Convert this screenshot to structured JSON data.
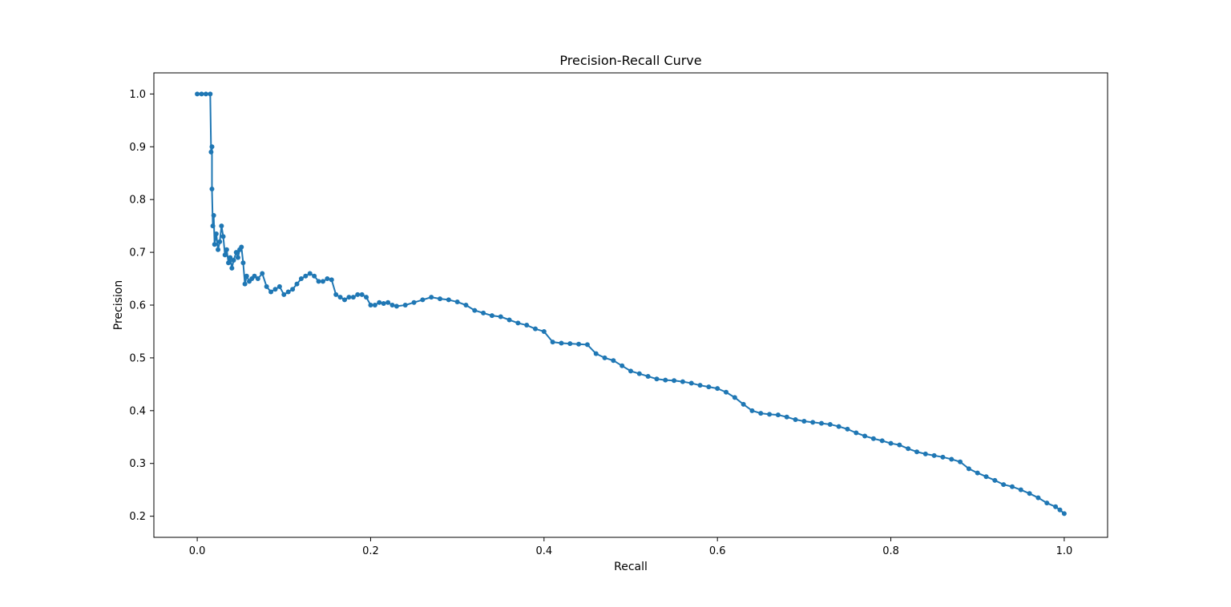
{
  "chart_data": {
    "type": "line",
    "title": "Precision-Recall Curve",
    "xlabel": "Recall",
    "ylabel": "Precision",
    "xlim": [
      -0.05,
      1.05
    ],
    "ylim": [
      0.16,
      1.04
    ],
    "x_ticks": [
      0.0,
      0.2,
      0.4,
      0.6,
      0.8,
      1.0
    ],
    "y_ticks": [
      0.2,
      0.3,
      0.4,
      0.5,
      0.6,
      0.7,
      0.8,
      0.9,
      1.0
    ],
    "x_tick_labels": [
      "0.0",
      "0.2",
      "0.4",
      "0.6",
      "0.8",
      "1.0"
    ],
    "y_tick_labels": [
      "0.2",
      "0.3",
      "0.4",
      "0.5",
      "0.6",
      "0.7",
      "0.8",
      "0.9",
      "1.0"
    ],
    "grid": false,
    "marker": "o",
    "colors": {
      "series": "#1f77b4"
    },
    "series": [
      {
        "x": [
          0.0,
          0.005,
          0.01,
          0.015,
          0.016,
          0.017,
          0.017,
          0.018,
          0.019,
          0.02,
          0.022,
          0.024,
          0.026,
          0.028,
          0.03,
          0.032,
          0.034,
          0.036,
          0.038,
          0.04,
          0.042,
          0.045,
          0.047,
          0.049,
          0.051,
          0.053,
          0.055,
          0.057,
          0.06,
          0.063,
          0.066,
          0.07,
          0.075,
          0.08,
          0.085,
          0.09,
          0.095,
          0.1,
          0.105,
          0.11,
          0.115,
          0.12,
          0.125,
          0.13,
          0.135,
          0.14,
          0.145,
          0.15,
          0.155,
          0.16,
          0.165,
          0.17,
          0.175,
          0.18,
          0.185,
          0.19,
          0.195,
          0.2,
          0.205,
          0.21,
          0.215,
          0.22,
          0.225,
          0.23,
          0.24,
          0.25,
          0.26,
          0.27,
          0.28,
          0.29,
          0.3,
          0.31,
          0.32,
          0.33,
          0.34,
          0.35,
          0.36,
          0.37,
          0.38,
          0.39,
          0.4,
          0.41,
          0.42,
          0.43,
          0.44,
          0.45,
          0.46,
          0.47,
          0.48,
          0.49,
          0.5,
          0.51,
          0.52,
          0.53,
          0.54,
          0.55,
          0.56,
          0.57,
          0.58,
          0.59,
          0.6,
          0.61,
          0.62,
          0.63,
          0.64,
          0.65,
          0.66,
          0.67,
          0.68,
          0.69,
          0.7,
          0.71,
          0.72,
          0.73,
          0.74,
          0.75,
          0.76,
          0.77,
          0.78,
          0.79,
          0.8,
          0.81,
          0.82,
          0.83,
          0.84,
          0.85,
          0.86,
          0.87,
          0.88,
          0.89,
          0.9,
          0.91,
          0.92,
          0.93,
          0.94,
          0.95,
          0.96,
          0.97,
          0.98,
          0.99,
          0.995,
          1.0
        ],
        "y": [
          1.0,
          1.0,
          1.0,
          1.0,
          0.89,
          0.9,
          0.82,
          0.75,
          0.77,
          0.715,
          0.735,
          0.705,
          0.72,
          0.75,
          0.73,
          0.695,
          0.705,
          0.68,
          0.69,
          0.67,
          0.685,
          0.7,
          0.69,
          0.705,
          0.71,
          0.68,
          0.64,
          0.655,
          0.645,
          0.65,
          0.655,
          0.65,
          0.66,
          0.635,
          0.625,
          0.63,
          0.635,
          0.62,
          0.625,
          0.63,
          0.64,
          0.65,
          0.655,
          0.66,
          0.655,
          0.645,
          0.645,
          0.65,
          0.648,
          0.62,
          0.615,
          0.61,
          0.615,
          0.615,
          0.62,
          0.62,
          0.615,
          0.6,
          0.6,
          0.605,
          0.603,
          0.605,
          0.6,
          0.598,
          0.6,
          0.605,
          0.61,
          0.615,
          0.612,
          0.61,
          0.606,
          0.6,
          0.59,
          0.585,
          0.58,
          0.578,
          0.572,
          0.566,
          0.562,
          0.555,
          0.55,
          0.53,
          0.528,
          0.527,
          0.526,
          0.525,
          0.508,
          0.5,
          0.495,
          0.485,
          0.475,
          0.47,
          0.465,
          0.46,
          0.458,
          0.457,
          0.455,
          0.452,
          0.448,
          0.445,
          0.442,
          0.435,
          0.425,
          0.412,
          0.4,
          0.395,
          0.393,
          0.392,
          0.388,
          0.383,
          0.38,
          0.378,
          0.376,
          0.374,
          0.37,
          0.365,
          0.358,
          0.352,
          0.347,
          0.343,
          0.338,
          0.335,
          0.328,
          0.322,
          0.318,
          0.315,
          0.312,
          0.308,
          0.303,
          0.29,
          0.282,
          0.275,
          0.268,
          0.26,
          0.256,
          0.25,
          0.243,
          0.235,
          0.225,
          0.218,
          0.212,
          0.205
        ]
      }
    ]
  }
}
